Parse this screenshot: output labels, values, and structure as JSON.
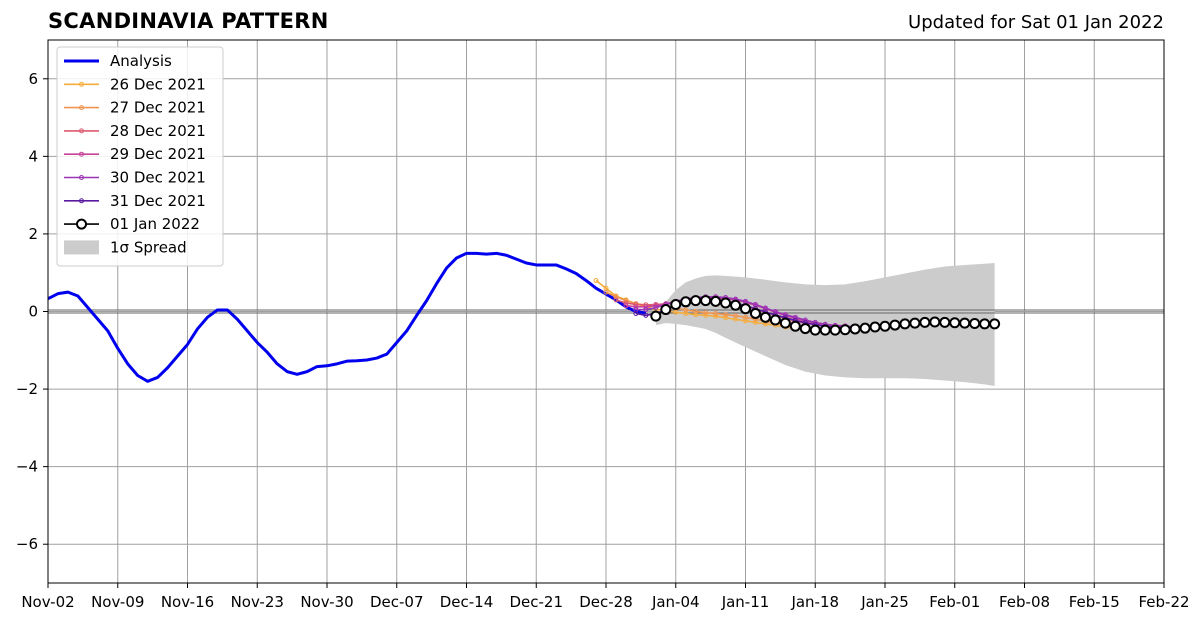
{
  "header": {
    "title": "SCANDINAVIA PATTERN",
    "updated": "Updated for Sat 01 Jan 2022"
  },
  "chart_data": {
    "type": "line",
    "title": "SCANDINAVIA PATTERN",
    "xlabel": "",
    "ylabel": "",
    "x_range_days": [
      0,
      112
    ],
    "ylim": [
      -7,
      7
    ],
    "grid": true,
    "legend_position": "top-left",
    "x_ticks": [
      {
        "day": 0,
        "label": "Nov-02"
      },
      {
        "day": 7,
        "label": "Nov-09"
      },
      {
        "day": 14,
        "label": "Nov-16"
      },
      {
        "day": 21,
        "label": "Nov-23"
      },
      {
        "day": 28,
        "label": "Nov-30"
      },
      {
        "day": 35,
        "label": "Dec-07"
      },
      {
        "day": 42,
        "label": "Dec-14"
      },
      {
        "day": 49,
        "label": "Dec-21"
      },
      {
        "day": 56,
        "label": "Dec-28"
      },
      {
        "day": 63,
        "label": "Jan-04"
      },
      {
        "day": 70,
        "label": "Jan-11"
      },
      {
        "day": 77,
        "label": "Jan-18"
      },
      {
        "day": 84,
        "label": "Jan-25"
      },
      {
        "day": 91,
        "label": "Feb-01"
      },
      {
        "day": 98,
        "label": "Feb-08"
      },
      {
        "day": 105,
        "label": "Feb-15"
      },
      {
        "day": 112,
        "label": "Feb-22"
      }
    ],
    "y_ticks": [
      {
        "v": -6,
        "label": "−6"
      },
      {
        "v": -4,
        "label": "−4"
      },
      {
        "v": -2,
        "label": "−2"
      },
      {
        "v": 0,
        "label": "0"
      },
      {
        "v": 2,
        "label": "2"
      },
      {
        "v": 4,
        "label": "4"
      },
      {
        "v": 6,
        "label": "6"
      }
    ],
    "analysis": {
      "name": "Analysis",
      "color": "#0000ee",
      "points": [
        [
          0,
          0.33
        ],
        [
          1,
          0.46
        ],
        [
          2,
          0.5
        ],
        [
          3,
          0.4
        ],
        [
          4,
          0.1
        ],
        [
          5,
          -0.2
        ],
        [
          6,
          -0.5
        ],
        [
          7,
          -0.95
        ],
        [
          8,
          -1.35
        ],
        [
          9,
          -1.65
        ],
        [
          10,
          -1.8
        ],
        [
          11,
          -1.7
        ],
        [
          12,
          -1.45
        ],
        [
          13,
          -1.15
        ],
        [
          14,
          -0.85
        ],
        [
          15,
          -0.45
        ],
        [
          16,
          -0.15
        ],
        [
          17,
          0.04
        ],
        [
          18,
          0.04
        ],
        [
          19,
          -0.2
        ],
        [
          20,
          -0.5
        ],
        [
          21,
          -0.8
        ],
        [
          22,
          -1.05
        ],
        [
          23,
          -1.35
        ],
        [
          24,
          -1.55
        ],
        [
          25,
          -1.62
        ],
        [
          26,
          -1.55
        ],
        [
          27,
          -1.42
        ],
        [
          28,
          -1.4
        ],
        [
          29,
          -1.35
        ],
        [
          30,
          -1.28
        ],
        [
          31,
          -1.27
        ],
        [
          32,
          -1.25
        ],
        [
          33,
          -1.2
        ],
        [
          34,
          -1.1
        ],
        [
          35,
          -0.8
        ],
        [
          36,
          -0.5
        ],
        [
          37,
          -0.1
        ],
        [
          38,
          0.28
        ],
        [
          39,
          0.72
        ],
        [
          40,
          1.12
        ],
        [
          41,
          1.38
        ],
        [
          42,
          1.5
        ],
        [
          43,
          1.5
        ],
        [
          44,
          1.48
        ],
        [
          45,
          1.5
        ],
        [
          46,
          1.45
        ],
        [
          47,
          1.35
        ],
        [
          48,
          1.25
        ],
        [
          49,
          1.2
        ],
        [
          50,
          1.2
        ],
        [
          51,
          1.2
        ],
        [
          52,
          1.1
        ],
        [
          53,
          0.98
        ],
        [
          54,
          0.8
        ],
        [
          55,
          0.6
        ],
        [
          56,
          0.45
        ],
        [
          57,
          0.3
        ],
        [
          58,
          0.12
        ],
        [
          59,
          0.0
        ],
        [
          60,
          -0.04
        ]
      ]
    },
    "forecasts": [
      {
        "name": "26 Dec 2021",
        "color": "#f5ad3c",
        "points": [
          [
            55,
            0.8
          ],
          [
            56,
            0.6
          ],
          [
            57,
            0.4
          ],
          [
            58,
            0.3
          ],
          [
            59,
            0.2
          ],
          [
            60,
            0.12
          ],
          [
            61,
            0.06
          ],
          [
            62,
            0.02
          ],
          [
            63,
            -0.02
          ],
          [
            64,
            -0.05
          ],
          [
            65,
            -0.08
          ],
          [
            66,
            -0.1
          ],
          [
            67,
            -0.12
          ],
          [
            68,
            -0.16
          ],
          [
            69,
            -0.2
          ],
          [
            70,
            -0.24
          ],
          [
            71,
            -0.28
          ],
          [
            72,
            -0.32
          ],
          [
            73,
            -0.35
          ],
          [
            74,
            -0.4
          ],
          [
            75,
            -0.44
          ],
          [
            76,
            -0.48
          ],
          [
            77,
            -0.5
          ]
        ]
      },
      {
        "name": "27 Dec 2021",
        "color": "#f09550",
        "points": [
          [
            56,
            0.5
          ],
          [
            57,
            0.38
          ],
          [
            58,
            0.28
          ],
          [
            59,
            0.2
          ],
          [
            60,
            0.17
          ],
          [
            61,
            0.15
          ],
          [
            62,
            0.12
          ],
          [
            63,
            0.08
          ],
          [
            64,
            0.04
          ],
          [
            65,
            0.0
          ],
          [
            66,
            -0.03
          ],
          [
            67,
            -0.05
          ],
          [
            68,
            -0.08
          ],
          [
            69,
            -0.11
          ],
          [
            70,
            -0.15
          ],
          [
            71,
            -0.2
          ],
          [
            72,
            -0.25
          ],
          [
            73,
            -0.3
          ],
          [
            74,
            -0.34
          ],
          [
            75,
            -0.38
          ],
          [
            76,
            -0.42
          ],
          [
            77,
            -0.45
          ],
          [
            78,
            -0.47
          ]
        ]
      },
      {
        "name": "28 Dec 2021",
        "color": "#dd5a6f",
        "points": [
          [
            57,
            0.3
          ],
          [
            58,
            0.22
          ],
          [
            59,
            0.18
          ],
          [
            60,
            0.17
          ],
          [
            61,
            0.18
          ],
          [
            62,
            0.2
          ],
          [
            63,
            0.22
          ],
          [
            64,
            0.24
          ],
          [
            65,
            0.25
          ],
          [
            66,
            0.26
          ],
          [
            67,
            0.25
          ],
          [
            68,
            0.23
          ],
          [
            69,
            0.2
          ],
          [
            70,
            0.14
          ],
          [
            71,
            0.06
          ],
          [
            72,
            -0.02
          ],
          [
            73,
            -0.1
          ],
          [
            74,
            -0.18
          ],
          [
            75,
            -0.25
          ],
          [
            76,
            -0.3
          ],
          [
            77,
            -0.34
          ],
          [
            78,
            -0.37
          ],
          [
            79,
            -0.39
          ]
        ]
      },
      {
        "name": "29 Dec 2021",
        "color": "#c7439a",
        "points": [
          [
            58,
            0.15
          ],
          [
            59,
            0.12
          ],
          [
            60,
            0.12
          ],
          [
            61,
            0.15
          ],
          [
            62,
            0.2
          ],
          [
            63,
            0.26
          ],
          [
            64,
            0.3
          ],
          [
            65,
            0.33
          ],
          [
            66,
            0.35
          ],
          [
            67,
            0.35
          ],
          [
            68,
            0.33
          ],
          [
            69,
            0.3
          ],
          [
            70,
            0.24
          ],
          [
            71,
            0.16
          ],
          [
            72,
            0.07
          ],
          [
            73,
            -0.02
          ],
          [
            74,
            -0.1
          ],
          [
            75,
            -0.18
          ],
          [
            76,
            -0.25
          ],
          [
            77,
            -0.3
          ],
          [
            78,
            -0.34
          ],
          [
            79,
            -0.36
          ],
          [
            80,
            -0.37
          ]
        ]
      },
      {
        "name": "30 Dec 2021",
        "color": "#9a35b5",
        "points": [
          [
            59,
            0.05
          ],
          [
            60,
            0.05
          ],
          [
            61,
            0.1
          ],
          [
            62,
            0.18
          ],
          [
            63,
            0.26
          ],
          [
            64,
            0.32
          ],
          [
            65,
            0.36
          ],
          [
            66,
            0.38
          ],
          [
            67,
            0.38
          ],
          [
            68,
            0.36
          ],
          [
            69,
            0.32
          ],
          [
            70,
            0.26
          ],
          [
            71,
            0.18
          ],
          [
            72,
            0.09
          ],
          [
            73,
            0.0
          ],
          [
            74,
            -0.08
          ],
          [
            75,
            -0.15
          ],
          [
            76,
            -0.22
          ],
          [
            77,
            -0.28
          ],
          [
            78,
            -0.33
          ],
          [
            79,
            -0.36
          ],
          [
            80,
            -0.38
          ],
          [
            81,
            -0.39
          ]
        ]
      },
      {
        "name": "31 Dec 2021",
        "color": "#5a1aa0",
        "points": [
          [
            59,
            -0.05
          ],
          [
            60,
            -0.1
          ],
          [
            61,
            -0.05
          ],
          [
            62,
            0.05
          ],
          [
            63,
            0.15
          ],
          [
            64,
            0.24
          ],
          [
            65,
            0.3
          ],
          [
            66,
            0.32
          ],
          [
            67,
            0.3
          ],
          [
            68,
            0.27
          ],
          [
            69,
            0.22
          ],
          [
            70,
            0.15
          ],
          [
            71,
            0.07
          ],
          [
            72,
            -0.01
          ],
          [
            73,
            -0.09
          ],
          [
            74,
            -0.16
          ],
          [
            75,
            -0.23
          ],
          [
            76,
            -0.29
          ],
          [
            77,
            -0.34
          ],
          [
            78,
            -0.38
          ],
          [
            79,
            -0.4
          ],
          [
            80,
            -0.41
          ],
          [
            81,
            -0.42
          ]
        ]
      }
    ],
    "latest": {
      "name": "01 Jan 2022",
      "color": "#000000",
      "points": [
        [
          61,
          -0.12
        ],
        [
          62,
          0.05
        ],
        [
          63,
          0.18
        ],
        [
          64,
          0.25
        ],
        [
          65,
          0.28
        ],
        [
          66,
          0.28
        ],
        [
          67,
          0.26
        ],
        [
          68,
          0.22
        ],
        [
          69,
          0.16
        ],
        [
          70,
          0.07
        ],
        [
          71,
          -0.05
        ],
        [
          72,
          -0.15
        ],
        [
          73,
          -0.22
        ],
        [
          74,
          -0.3
        ],
        [
          75,
          -0.38
        ],
        [
          76,
          -0.44
        ],
        [
          77,
          -0.48
        ],
        [
          78,
          -0.48
        ],
        [
          79,
          -0.48
        ],
        [
          80,
          -0.47
        ],
        [
          81,
          -0.45
        ],
        [
          82,
          -0.43
        ],
        [
          83,
          -0.4
        ],
        [
          84,
          -0.38
        ],
        [
          85,
          -0.35
        ],
        [
          86,
          -0.32
        ],
        [
          87,
          -0.3
        ],
        [
          88,
          -0.28
        ],
        [
          89,
          -0.27
        ],
        [
          90,
          -0.28
        ],
        [
          91,
          -0.29
        ],
        [
          92,
          -0.3
        ],
        [
          93,
          -0.31
        ],
        [
          94,
          -0.32
        ],
        [
          95,
          -0.32
        ]
      ]
    },
    "spread": {
      "name": "1σ Spread",
      "color": "#cccccc",
      "upper": [
        [
          61,
          -0.25
        ],
        [
          62,
          0.25
        ],
        [
          63,
          0.55
        ],
        [
          64,
          0.75
        ],
        [
          65,
          0.85
        ],
        [
          66,
          0.92
        ],
        [
          67,
          0.93
        ],
        [
          68,
          0.92
        ],
        [
          69,
          0.9
        ],
        [
          70,
          0.88
        ],
        [
          72,
          0.82
        ],
        [
          74,
          0.75
        ],
        [
          76,
          0.7
        ],
        [
          78,
          0.68
        ],
        [
          80,
          0.7
        ],
        [
          82,
          0.78
        ],
        [
          84,
          0.88
        ],
        [
          86,
          0.98
        ],
        [
          88,
          1.08
        ],
        [
          90,
          1.16
        ],
        [
          92,
          1.2
        ],
        [
          94,
          1.23
        ],
        [
          95,
          1.25
        ]
      ],
      "lower": [
        [
          61,
          -0.35
        ],
        [
          62,
          -0.3
        ],
        [
          63,
          -0.32
        ],
        [
          64,
          -0.35
        ],
        [
          65,
          -0.4
        ],
        [
          66,
          -0.45
        ],
        [
          67,
          -0.55
        ],
        [
          68,
          -0.68
        ],
        [
          69,
          -0.8
        ],
        [
          70,
          -0.92
        ],
        [
          72,
          -1.15
        ],
        [
          74,
          -1.38
        ],
        [
          76,
          -1.55
        ],
        [
          78,
          -1.65
        ],
        [
          80,
          -1.7
        ],
        [
          82,
          -1.72
        ],
        [
          84,
          -1.72
        ],
        [
          86,
          -1.72
        ],
        [
          88,
          -1.74
        ],
        [
          90,
          -1.78
        ],
        [
          92,
          -1.82
        ],
        [
          94,
          -1.88
        ],
        [
          95,
          -1.92
        ]
      ]
    }
  }
}
